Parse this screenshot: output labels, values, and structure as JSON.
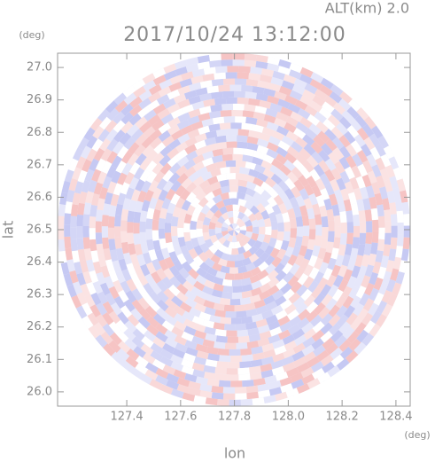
{
  "chart_data": {
    "type": "ppi",
    "title": "2017/10/24 13:12:00",
    "subtitle": "ALT(km) 2.0",
    "xlabel": "lon",
    "ylabel": "lat",
    "xunit": "(deg)",
    "yunit": "(deg)",
    "xlim": [
      127.143,
      128.453
    ],
    "ylim": [
      25.956,
      27.044
    ],
    "xticks": [
      127.4,
      127.6,
      127.8,
      {
        "value": 128.0,
        "label": "128.0"
      },
      128.2,
      128.4
    ],
    "yticks": [
      {
        "value": 26.0,
        "label": "26.0"
      },
      26.1,
      26.2,
      26.3,
      26.4,
      26.5,
      26.6,
      26.7,
      26.8,
      26.9,
      {
        "value": 27.0,
        "label": "27.0"
      }
    ]
  }
}
